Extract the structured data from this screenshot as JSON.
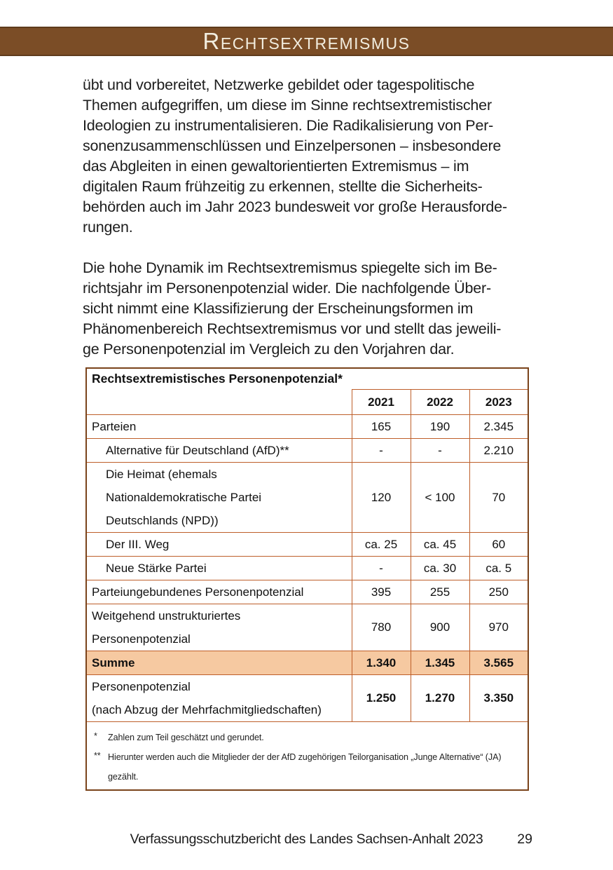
{
  "header": {
    "title": "Rechtsextremismus"
  },
  "paragraphs": [
    "übt und vorbereitet, Netzwerke gebildet oder tagespolitische\nThemen aufgegriffen, um diese im Sinne rechtsextremistischer\nIdeologien zu instrumentalisieren. Die Radikalisierung von Per-\nsonenzusammenschlüssen und Einzelpersonen – insbesondere\ndas Abgleiten in einen gewaltorientierten Extremismus – im\ndigitalen Raum frühzeitig zu erkennen, stellte die Sicherheits-\nbehörden auch im Jahr 2023 bundesweit vor große Herausforde-\nrungen.",
    "Die hohe Dynamik im Rechtsextremismus spiegelte sich im Be-\nrichtsjahr im Personenpotenzial wider. Die nachfolgende Über-\nsicht nimmt eine Klassifizierung der Erscheinungsformen im\nPhänomenbereich Rechtsextremismus vor und stellt das jeweili-\nge Personenpotenzial im Vergleich zu den Vorjahren dar."
  ],
  "table": {
    "title": "Rechtsextremistisches Personenpotenzial*",
    "year_headers": [
      "2021",
      "2022",
      "2023"
    ],
    "rows": [
      {
        "label": "Parteien",
        "indent": false,
        "values": [
          "165",
          "190",
          "2.345"
        ]
      },
      {
        "label": "Alternative für Deutschland (AfD)**",
        "indent": true,
        "values": [
          "-",
          "-",
          "2.210"
        ]
      },
      {
        "label": "Die Heimat (ehemals\nNationaldemokratische Partei\nDeutschlands (NPD))",
        "indent": true,
        "values": [
          "120",
          "< 100",
          "70"
        ]
      },
      {
        "label": "Der III. Weg",
        "indent": true,
        "values": [
          "ca. 25",
          "ca. 45",
          "60"
        ]
      },
      {
        "label": "Neue Stärke Partei",
        "indent": true,
        "values": [
          "-",
          "ca. 30",
          "ca. 5"
        ]
      },
      {
        "label": "Parteiungebundenes Personenpotenzial",
        "indent": false,
        "values": [
          "395",
          "255",
          "250"
        ]
      },
      {
        "label": "Weitgehend unstrukturiertes\nPersonenpotenzial",
        "indent": false,
        "values": [
          "780",
          "900",
          "970"
        ]
      },
      {
        "label": "Summe",
        "indent": false,
        "highlight": true,
        "bold": true,
        "values": [
          "1.340",
          "1.345",
          "3.565"
        ]
      },
      {
        "label": "Personenpotenzial\n(nach Abzug der Mehrfachmitgliedschaften)",
        "indent": false,
        "bold_values": true,
        "values": [
          "1.250",
          "1.270",
          "3.350"
        ]
      }
    ],
    "footnotes": [
      {
        "marker": "*",
        "text": "Zahlen zum Teil geschätzt und gerundet."
      },
      {
        "marker": "**",
        "text": "Hierunter werden auch die Mitglieder der der AfD zugehörigen Teilorganisation „Junge Alternative“ (JA)\ngezählt."
      }
    ]
  },
  "footer": {
    "text": "Verfassungsschutzbericht des Landes Sachsen-Anhalt 2023",
    "page_number": "29"
  },
  "colors": {
    "header_bar": "#7b4d26",
    "header_title_text": "#f2eddf",
    "table_border_inner": "#be5f2a",
    "table_border_outer": "#7a431b",
    "sum_row_background": "#f6c9a1",
    "body_text": "#1d1d1d"
  }
}
